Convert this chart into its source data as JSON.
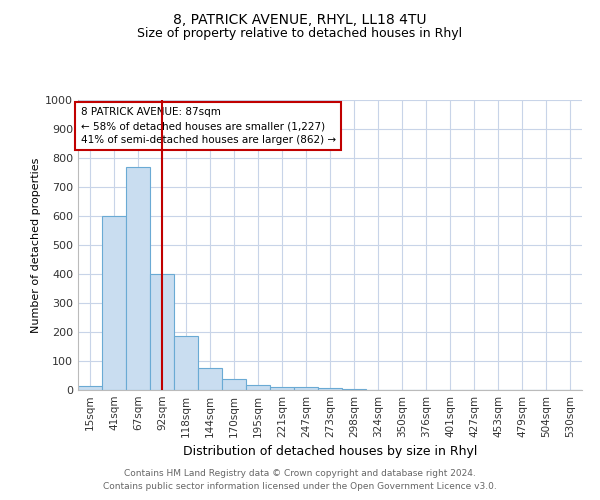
{
  "title": "8, PATRICK AVENUE, RHYL, LL18 4TU",
  "subtitle": "Size of property relative to detached houses in Rhyl",
  "xlabel": "Distribution of detached houses by size in Rhyl",
  "ylabel": "Number of detached properties",
  "categories": [
    "15sqm",
    "41sqm",
    "67sqm",
    "92sqm",
    "118sqm",
    "144sqm",
    "170sqm",
    "195sqm",
    "221sqm",
    "247sqm",
    "273sqm",
    "298sqm",
    "324sqm",
    "350sqm",
    "376sqm",
    "401sqm",
    "427sqm",
    "453sqm",
    "479sqm",
    "504sqm",
    "530sqm"
  ],
  "values": [
    15,
    600,
    770,
    400,
    185,
    75,
    38,
    18,
    12,
    12,
    8,
    5,
    0,
    0,
    0,
    0,
    0,
    0,
    0,
    0,
    0
  ],
  "bar_color": "#c9ddf0",
  "bar_edge_color": "#6aaad4",
  "bar_linewidth": 0.8,
  "vline_x_index": 3,
  "vline_color": "#c00000",
  "ylim": [
    0,
    1000
  ],
  "yticks": [
    0,
    100,
    200,
    300,
    400,
    500,
    600,
    700,
    800,
    900,
    1000
  ],
  "annotation_title": "8 PATRICK AVENUE: 87sqm",
  "annotation_line1": "← 58% of detached houses are smaller (1,227)",
  "annotation_line2": "41% of semi-detached houses are larger (862) →",
  "annotation_box_color": "#ffffff",
  "annotation_box_edge": "#c00000",
  "background_color": "#ffffff",
  "grid_color": "#c8d4e8",
  "title_fontsize": 10,
  "subtitle_fontsize": 9,
  "footer1": "Contains HM Land Registry data © Crown copyright and database right 2024.",
  "footer2": "Contains public sector information licensed under the Open Government Licence v3.0."
}
